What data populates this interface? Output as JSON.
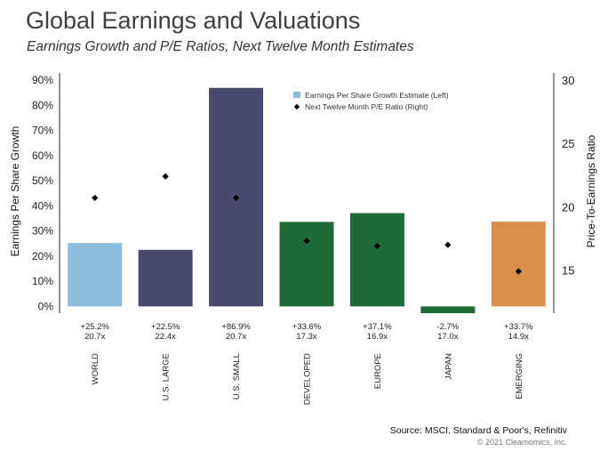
{
  "header": {
    "title": "Global Earnings and Valuations",
    "subtitle": "Earnings Growth and P/E Ratios, Next Twelve Month Estimates"
  },
  "footer": {
    "source": "Source: MSCI, Standard & Poor's, Refinitiv",
    "copyright": "© 2021 Clearnomics, Inc."
  },
  "chart_data": {
    "type": "bar",
    "categories": [
      "WORLD",
      "U.S. LARGE",
      "U.S. SMALL",
      "DEVELOPED",
      "EUROPE",
      "JAPAN",
      "EMERGING"
    ],
    "series": [
      {
        "name": "Earnings Per Share Growth Estimate (Left)",
        "type": "bar",
        "axis": "left",
        "values": [
          25.2,
          22.5,
          86.9,
          33.6,
          37.1,
          -2.7,
          33.7
        ]
      },
      {
        "name": "Next Twelve Month P/E Ratio (Right)",
        "type": "scatter",
        "marker": "diamond",
        "axis": "right",
        "values": [
          20.7,
          22.4,
          20.7,
          17.3,
          16.9,
          17.0,
          14.9
        ]
      }
    ],
    "value_labels": [
      {
        "growth": "+25.2%",
        "pe": "20.7x"
      },
      {
        "growth": "+22.5%",
        "pe": "22.4x"
      },
      {
        "growth": "+86.9%",
        "pe": "20.7x"
      },
      {
        "growth": "+33.6%",
        "pe": "17.3x"
      },
      {
        "growth": "+37.1%",
        "pe": "16.9x"
      },
      {
        "growth": "-2.7%",
        "pe": "17.0x"
      },
      {
        "growth": "+33.7%",
        "pe": "14.9x"
      }
    ],
    "bar_colors": [
      "#8bbcdb",
      "#4a4a6e",
      "#4a4a6e",
      "#1f6b38",
      "#1f6b38",
      "#1f6b38",
      "#d98f4a"
    ],
    "marker_color": "#000000",
    "ylabel": "Earnings Per Share Growth",
    "y2label": "Price-To-Earnings Ratio",
    "ylim": [
      -2.7,
      90
    ],
    "yticks": [
      0,
      10,
      20,
      30,
      40,
      50,
      60,
      70,
      80,
      90
    ],
    "ytick_labels": [
      "0%",
      "10%",
      "20%",
      "30%",
      "40%",
      "50%",
      "60%",
      "70%",
      "80%",
      "90%"
    ],
    "y2lim": [
      11.6,
      30
    ],
    "y2ticks": [
      15,
      20,
      25,
      30
    ],
    "y2tick_labels": [
      "15",
      "20",
      "25",
      "30"
    ],
    "grid": false,
    "legend_position": "top-right"
  }
}
